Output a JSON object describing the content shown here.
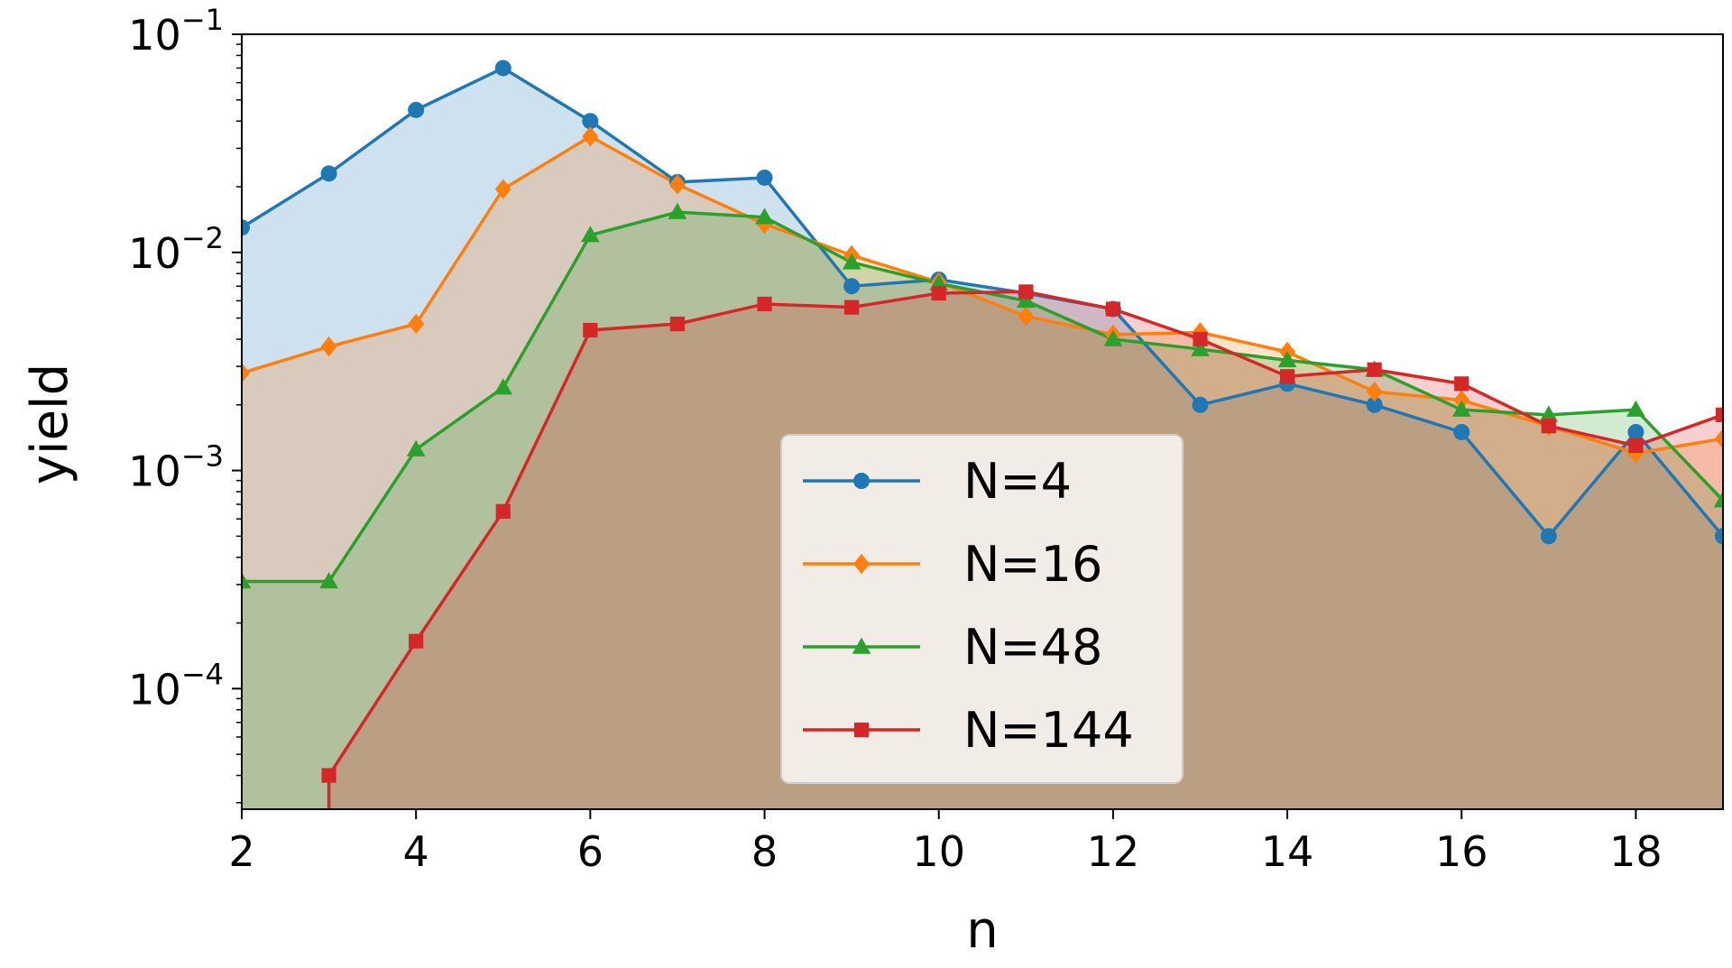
{
  "chart_data": {
    "type": "area",
    "title": "",
    "xlabel": "n",
    "ylabel": "yield",
    "x_scale": "linear",
    "y_scale": "log",
    "xlim": [
      2,
      19
    ],
    "ylim": [
      2.8e-05,
      0.1
    ],
    "xticks": [
      "2",
      "4",
      "6",
      "8",
      "10",
      "12",
      "14",
      "16",
      "18"
    ],
    "yticks": [
      {
        "value": 0.1,
        "base": "10",
        "exp": "−1"
      },
      {
        "value": 0.01,
        "base": "10",
        "exp": "−2"
      },
      {
        "value": 0.001,
        "base": "10",
        "exp": "−3"
      },
      {
        "value": 0.0001,
        "base": "10",
        "exp": "−4"
      }
    ],
    "grid": false,
    "legend_position": "lower-center",
    "series": [
      {
        "name": "N=4",
        "color": "#1f77b4",
        "marker": "circle",
        "x": [
          2,
          3,
          4,
          5,
          6,
          7,
          8,
          9,
          10,
          11,
          12,
          13,
          14,
          15,
          16,
          17,
          18,
          19
        ],
        "values": [
          0.013,
          0.023,
          0.045,
          0.07,
          0.04,
          0.021,
          0.022,
          0.007,
          0.0075,
          0.0065,
          0.0055,
          0.002,
          0.0025,
          0.002,
          0.0015,
          0.0005,
          0.0015,
          0.0005
        ]
      },
      {
        "name": "N=16",
        "color": "#ff7f0e",
        "marker": "diamond",
        "x": [
          2,
          3,
          4,
          5,
          6,
          7,
          8,
          9,
          10,
          11,
          12,
          13,
          14,
          15,
          16,
          17,
          18,
          19
        ],
        "values": [
          0.0028,
          0.0037,
          0.0047,
          0.0195,
          0.034,
          0.0205,
          0.0135,
          0.0097,
          0.0073,
          0.0051,
          0.0042,
          0.0043,
          0.0035,
          0.0023,
          0.0021,
          0.0016,
          0.0012,
          0.0014
        ]
      },
      {
        "name": "N=48",
        "color": "#2ca02c",
        "marker": "triangle",
        "x": [
          2,
          3,
          4,
          5,
          6,
          7,
          8,
          9,
          10,
          11,
          12,
          13,
          14,
          15,
          16,
          17,
          18,
          19
        ],
        "values": [
          0.00031,
          0.00031,
          0.00125,
          0.0024,
          0.012,
          0.0153,
          0.0145,
          0.009,
          0.0072,
          0.006,
          0.004,
          0.0036,
          0.0032,
          0.0029,
          0.0019,
          0.0018,
          0.0019,
          0.00073
        ]
      },
      {
        "name": "N=144",
        "color": "#d62728",
        "marker": "square",
        "x": [
          3,
          4,
          5,
          6,
          7,
          8,
          9,
          10,
          11,
          12,
          13,
          14,
          15,
          16,
          17,
          18,
          19
        ],
        "values": [
          4e-05,
          0.000165,
          0.00065,
          0.0044,
          0.0047,
          0.0058,
          0.0056,
          0.0065,
          0.0066,
          0.0055,
          0.004,
          0.0027,
          0.0029,
          0.0025,
          0.0016,
          0.0013,
          0.0018
        ]
      }
    ]
  }
}
